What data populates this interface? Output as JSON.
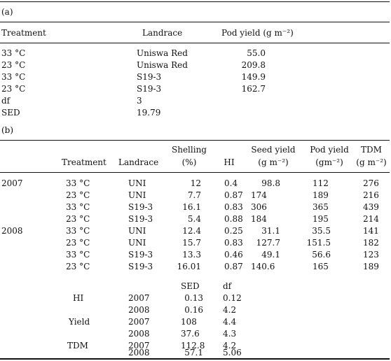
{
  "panel_a": {
    "label": "(a)",
    "headers": {
      "treatment": "Treatment",
      "landrace": "Landrace",
      "pod_yield": "Pod yield (g m⁻²)"
    },
    "rows": [
      {
        "treatment": "33 °C",
        "landrace": "Uniswa Red",
        "pod_yield": "55.0"
      },
      {
        "treatment": "23 °C",
        "landrace": "Uniswa Red",
        "pod_yield": "209.8"
      },
      {
        "treatment": "33 °C",
        "landrace": "S19-3",
        "pod_yield": "149.9"
      },
      {
        "treatment": "23 °C",
        "landrace": "S19-3",
        "pod_yield": "162.7"
      }
    ],
    "df_label": "df",
    "df_value": "3",
    "sed_label": "SED",
    "sed_value": "19.79"
  },
  "panel_b": {
    "label": "(b)",
    "headers": {
      "treatment": "Treatment",
      "landrace": "Landrace",
      "shelling_1": "Shelling",
      "shelling_2": "(%)",
      "hi": "HI",
      "seed_1": "Seed yield",
      "seed_2": "(g m⁻²)",
      "pod_1": "Pod yield",
      "pod_2": "(gm⁻²)",
      "tdm_1": "TDM",
      "tdm_2": "(g m⁻²)"
    },
    "rows": [
      {
        "year": "2007",
        "treatment": "33 °C",
        "landrace": "UNI",
        "shelling": "12",
        "hi": "0.4",
        "seed": "98.8",
        "pod": "112",
        "tdm": "276"
      },
      {
        "year": "",
        "treatment": "23 °C",
        "landrace": "UNI",
        "shelling": "7.7",
        "hi": "0.87",
        "seed": "174",
        "pod": "189",
        "tdm": "216"
      },
      {
        "year": "",
        "treatment": "33 °C",
        "landrace": "S19-3",
        "shelling": "16.1",
        "hi": "0.83",
        "seed": "306",
        "pod": "365",
        "tdm": "439"
      },
      {
        "year": "",
        "treatment": "23 °C",
        "landrace": "S19-3",
        "shelling": "5.4",
        "hi": "0.88",
        "seed": "184",
        "pod": "195",
        "tdm": "214"
      },
      {
        "year": "2008",
        "treatment": "33 °C",
        "landrace": "UNI",
        "shelling": "12.4",
        "hi": "0.25",
        "seed": "31.1",
        "pod": "35.5",
        "tdm": "141"
      },
      {
        "year": "",
        "treatment": "23 °C",
        "landrace": "UNI",
        "shelling": "15.7",
        "hi": "0.83",
        "seed": "127.7",
        "pod": "151.5",
        "tdm": "182"
      },
      {
        "year": "",
        "treatment": "33 °C",
        "landrace": "S19-3",
        "shelling": "13.3",
        "hi": "0.46",
        "seed": "49.1",
        "pod": "56.6",
        "tdm": "123"
      },
      {
        "year": "",
        "treatment": "23 °C",
        "landrace": "S19-3",
        "shelling": "16.01",
        "hi": "0.87",
        "seed": "140.6",
        "pod": "165",
        "tdm": "189"
      }
    ],
    "sed_table": {
      "sed_header": "SED",
      "df_header": "df",
      "rows": [
        {
          "variable": "HI",
          "year": "2007",
          "sed": "0.13",
          "df": "0.12"
        },
        {
          "variable": "",
          "year": "2008",
          "sed": "0.16",
          "df": "4.2"
        },
        {
          "variable": "Yield",
          "year": "2007",
          "sed": "108",
          "df": "4.4"
        },
        {
          "variable": "",
          "year": "2008",
          "sed": "37.6",
          "df": "4.3"
        },
        {
          "variable": "TDM",
          "year": "2007",
          "sed": "112.8",
          "df": "4.2"
        },
        {
          "variable": "",
          "year": "2008",
          "sed": "57.1",
          "df": "5.06"
        }
      ]
    }
  }
}
